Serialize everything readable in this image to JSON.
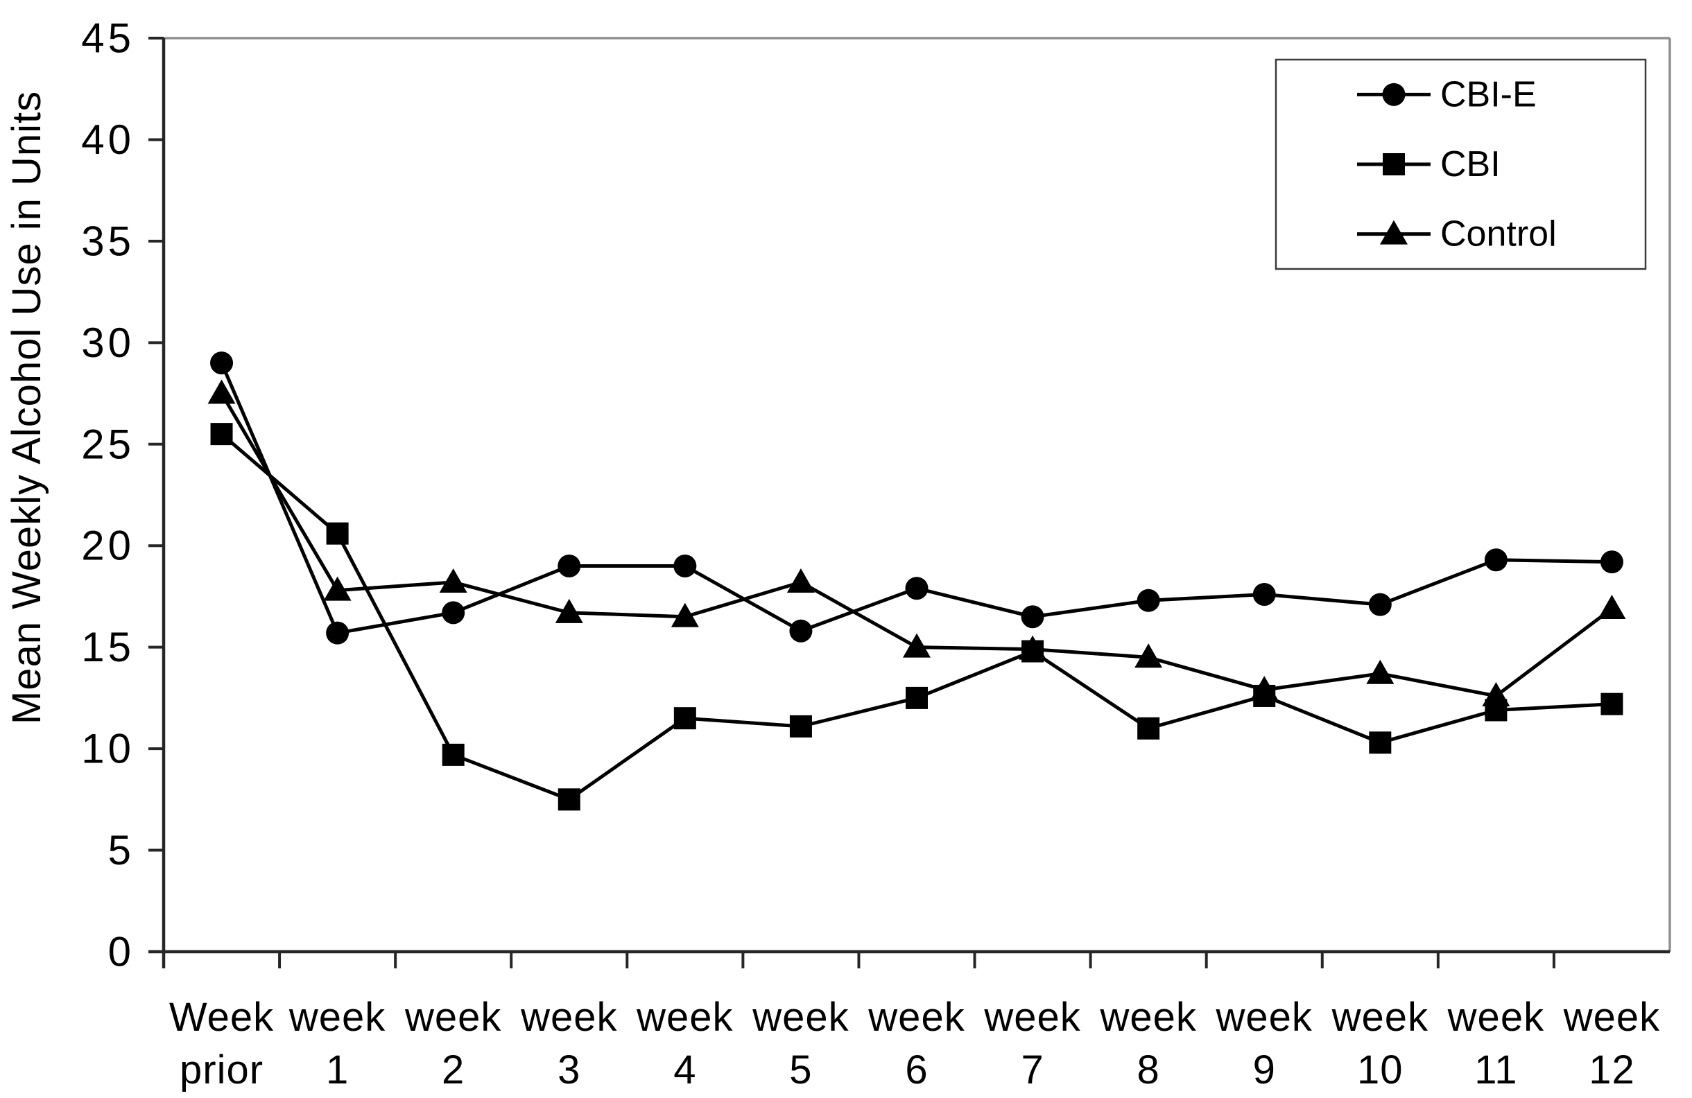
{
  "chart_data": {
    "type": "line",
    "title": "",
    "xlabel": "",
    "ylabel": "Mean Weekly Alcohol Use in Units",
    "ylim": [
      0,
      45
    ],
    "yticks": [
      0,
      5,
      10,
      15,
      20,
      25,
      30,
      35,
      40,
      45
    ],
    "grid": false,
    "legend_position": "top-right",
    "categories": [
      {
        "line1": "Week",
        "line2": "prior"
      },
      {
        "line1": "week",
        "line2": "1"
      },
      {
        "line1": "week",
        "line2": "2"
      },
      {
        "line1": "week",
        "line2": "3"
      },
      {
        "line1": "week",
        "line2": "4"
      },
      {
        "line1": "week",
        "line2": "5"
      },
      {
        "line1": "week",
        "line2": "6"
      },
      {
        "line1": "week",
        "line2": "7"
      },
      {
        "line1": "week",
        "line2": "8"
      },
      {
        "line1": "week",
        "line2": "9"
      },
      {
        "line1": "week",
        "line2": "10"
      },
      {
        "line1": "week",
        "line2": "11"
      },
      {
        "line1": "week",
        "line2": "12"
      }
    ],
    "series": [
      {
        "name": "CBI-E",
        "marker": "circle",
        "color": "#000000",
        "values": [
          29.0,
          15.7,
          16.7,
          19.0,
          19.0,
          15.8,
          17.9,
          16.5,
          17.3,
          17.6,
          17.1,
          19.3,
          19.2
        ]
      },
      {
        "name": "CBI",
        "marker": "square",
        "color": "#000000",
        "values": [
          25.5,
          20.6,
          9.7,
          7.5,
          11.5,
          11.1,
          12.5,
          14.8,
          11.0,
          12.6,
          10.3,
          11.9,
          12.2
        ]
      },
      {
        "name": "Control",
        "marker": "triangle",
        "color": "#000000",
        "values": [
          27.5,
          17.8,
          18.2,
          16.7,
          16.5,
          18.2,
          15.0,
          14.9,
          14.5,
          12.9,
          13.7,
          12.6,
          16.9
        ]
      }
    ]
  },
  "colors": {
    "series_line": "#000000",
    "axis_line": "#262626",
    "plot_border": "#8f8f8f",
    "legend_border": "#3a3a3a",
    "background": "#ffffff",
    "text": "#000000"
  }
}
